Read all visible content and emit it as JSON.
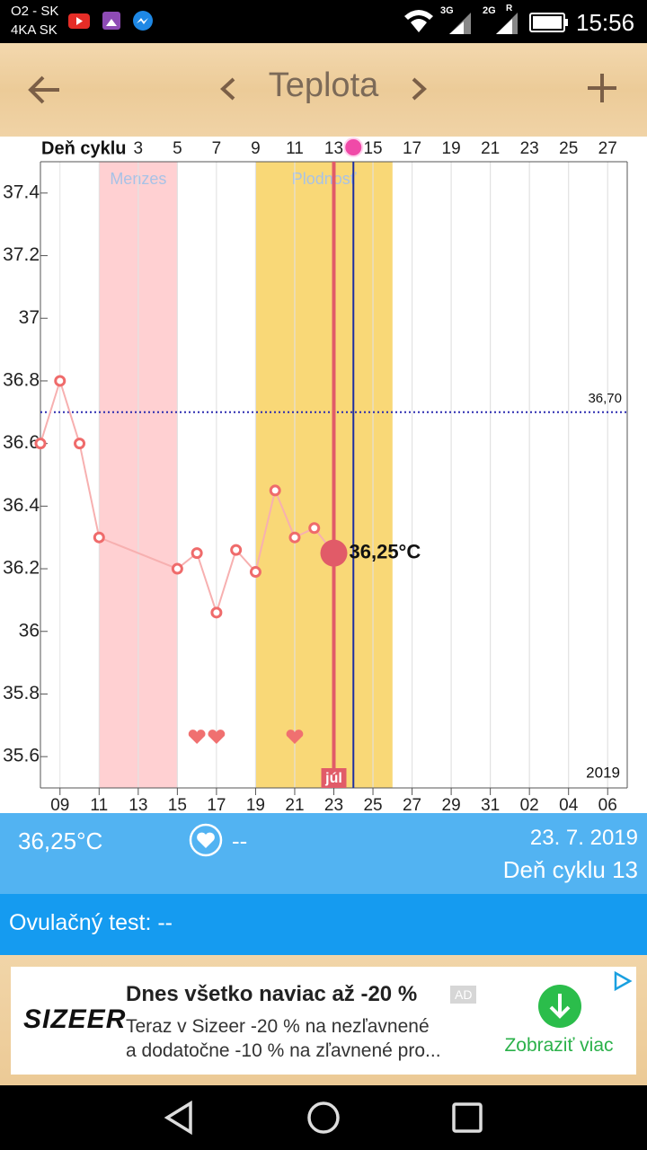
{
  "status_bar": {
    "carrier_1": "O2 - SK",
    "carrier_2": "4KA SK",
    "network_1": "3G",
    "network_2": "2G",
    "roaming": "R",
    "time": "15:56"
  },
  "header": {
    "title": "Teplota"
  },
  "chart_data": {
    "type": "line",
    "x_axis_top_label": "Deň cyklu",
    "x": [
      -2,
      -1,
      0,
      1,
      5,
      6,
      7,
      8,
      9,
      10,
      11,
      12,
      13
    ],
    "values": [
      36.6,
      36.8,
      36.6,
      36.3,
      36.2,
      36.25,
      36.06,
      36.26,
      36.19,
      36.45,
      36.3,
      36.33,
      36.25
    ],
    "color": "#ef6b6b",
    "xlim": [
      -2,
      28
    ],
    "ylim": [
      35.5,
      37.5
    ],
    "yticks": [
      35.6,
      35.8,
      36,
      36.2,
      36.4,
      36.6,
      36.8,
      37,
      37.2,
      37.4
    ],
    "x2ticks": [
      3,
      5,
      7,
      9,
      11,
      13,
      15,
      17,
      19,
      21,
      23,
      25,
      27
    ],
    "xticks": [
      {
        "value": -1,
        "label": "09"
      },
      {
        "value": 1,
        "label": "11"
      },
      {
        "value": 3,
        "label": "13"
      },
      {
        "value": 5,
        "label": "15"
      },
      {
        "value": 7,
        "label": "17"
      },
      {
        "value": 9,
        "label": "19"
      },
      {
        "value": 11,
        "label": "21"
      },
      {
        "value": 13,
        "label": "23"
      },
      {
        "value": 15,
        "label": "25"
      },
      {
        "value": 17,
        "label": "27"
      },
      {
        "value": 19,
        "label": "29"
      },
      {
        "value": 21,
        "label": "31"
      },
      {
        "value": 23,
        "label": "02"
      },
      {
        "value": 25,
        "label": "04"
      },
      {
        "value": 27,
        "label": "06"
      }
    ],
    "grid": true,
    "bands": [
      {
        "label": "Menzes",
        "start": 1,
        "end": 5,
        "color": "#ffd0d2"
      },
      {
        "label": "Plodnosť",
        "start": 9,
        "end": 16,
        "color": "#f9d877"
      }
    ],
    "reference_line": {
      "value": 36.7,
      "label": "36,70",
      "color": "#2b2bb0"
    },
    "selected": {
      "index": 12,
      "label": "36,25°C",
      "color": "#e15b68"
    },
    "ovulation_x": 14,
    "ovulation_color": "#1f2fa0",
    "intercourse_x": [
      6,
      7,
      11
    ],
    "month_label": {
      "x": 13,
      "label": "júl"
    },
    "year_label": "2019"
  },
  "info": {
    "temperature": "36,25°C",
    "intercourse": "--",
    "date": "23. 7. 2019",
    "cycle_day": "Deň cyklu 13"
  },
  "ovulation_test": "Ovulačný test: --",
  "ad": {
    "brand": "SIZEER",
    "headline": "Dnes všetko naviac až -20 %",
    "badge": "AD",
    "body_1": "Teraz v Sizeer -20 % na nezľavnené",
    "body_2": "a dodatočne -10 % na zľavnené pro...",
    "cta": "Zobraziť viac"
  }
}
